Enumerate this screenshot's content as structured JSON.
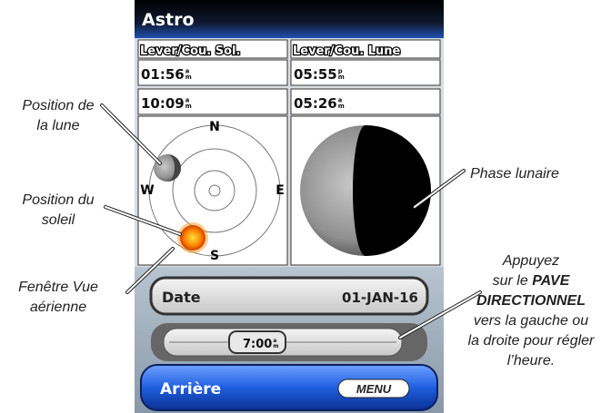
{
  "screen": {
    "title": "Astro",
    "sun_header": "Lever/Cou. Sol.",
    "moon_header": "Lever/Cou. Lune",
    "times": [
      {
        "time": "01:56",
        "top": "a",
        "bottom": "m"
      },
      {
        "time": "05:55",
        "top": "p",
        "bottom": "m"
      },
      {
        "time": "10:09",
        "top": "a",
        "bottom": "m"
      },
      {
        "time": "05:26",
        "top": "a",
        "bottom": "m"
      }
    ],
    "compass": {
      "n": "N",
      "w": "W",
      "e": "E",
      "s": "S"
    },
    "date_label": "Date",
    "date_value": "01-JAN-16",
    "slider": {
      "time": "7:00",
      "top": "a",
      "bottom": "m"
    },
    "back_button": "Arrière",
    "menu_button": "MENU"
  },
  "callouts": [
    {
      "lines": [
        [
          {
            "text": "Position de"
          }
        ],
        [
          {
            "text": "la lune"
          }
        ]
      ]
    },
    {
      "lines": [
        [
          {
            "text": "Position du"
          }
        ],
        [
          {
            "text": "soleil"
          }
        ]
      ]
    },
    {
      "lines": [
        [
          {
            "text": "Fenêtre Vue"
          }
        ],
        [
          {
            "text": "aérienne"
          }
        ]
      ]
    },
    {
      "lines": [
        [
          {
            "text": "Phase lunaire"
          }
        ]
      ]
    },
    {
      "lines": [
        [
          {
            "text": "Appuyez"
          }
        ],
        [
          {
            "text": "sur le "
          },
          {
            "text": "PAVE",
            "bold": true
          }
        ],
        [
          {
            "text": "DIRECTIONNEL",
            "bold": true
          }
        ],
        [
          {
            "text": "vers la gauche ou"
          }
        ],
        [
          {
            "text": "la droite pour régler"
          }
        ],
        [
          {
            "text": "l’heure."
          }
        ]
      ]
    }
  ]
}
